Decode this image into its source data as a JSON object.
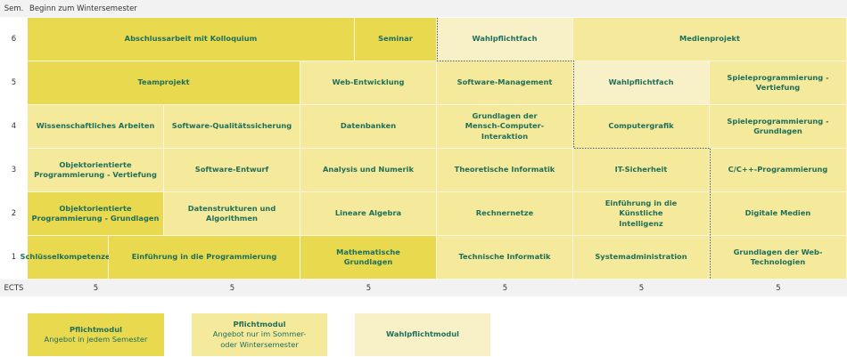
{
  "header": {
    "sem_label": "Sem.",
    "title": "Beginn zum Wintersemester"
  },
  "semesters": [
    "6",
    "5",
    "4",
    "3",
    "2",
    "1"
  ],
  "rows": {
    "s6": [
      "Abschlussarbeit mit Kolloquium",
      "Seminar",
      "Wahlpflichtfach",
      "Medienprojekt"
    ],
    "s5": [
      "Teamprojekt",
      "Web-Entwicklung",
      "Software-Management",
      "Wahlpflichtfach",
      "Spieleprogrammierung - Vertiefung"
    ],
    "s4": [
      "Wissenschaftliches Arbeiten",
      "Software-Qualitätssicherung",
      "Datenbanken",
      "Grundlagen der Mensch-Computer-Interaktion",
      "Computergrafik",
      "Spieleprogrammierung - Grundlagen"
    ],
    "s3": [
      "Objektorientierte Programmierung - Vertiefung",
      "Software-Entwurf",
      "Analysis und Numerik",
      "Theoretische Informatik",
      "IT-Sicherheit",
      "C/C++-Programmierung"
    ],
    "s2": [
      "Objektorientierte Programmierung - Grundlagen",
      "Datenstrukturen und Algorithmen",
      "Lineare Algebra",
      "Rechnernetze",
      "Einführung in die Künstliche Intelligenz",
      "Digitale Medien"
    ],
    "s1": [
      "Schlüsselkompetenzen",
      "Einführung in die Programmierung",
      "Mathematische Grundlagen",
      "Technische Informatik",
      "Systemadministration",
      "Grundlagen der Web-Technologien"
    ]
  },
  "ects": {
    "label": "ECTS",
    "values": [
      "5",
      "5",
      "5",
      "5",
      "5",
      "5"
    ]
  },
  "legend": [
    {
      "title": "Pflichtmodul",
      "sub": "Angebot in jedem Semester",
      "color": "#e9d94f"
    },
    {
      "title": "Pflichtmodul",
      "sub": "Angebot nur im Sommer- oder Wintersemester",
      "color": "#f5e99b"
    },
    {
      "title": "Wahlpflichtmodul",
      "sub": "",
      "color": "#f8f1c7"
    }
  ],
  "colors": {
    "text": "#1f6f5a",
    "header_bg": "#f2f2f2"
  }
}
